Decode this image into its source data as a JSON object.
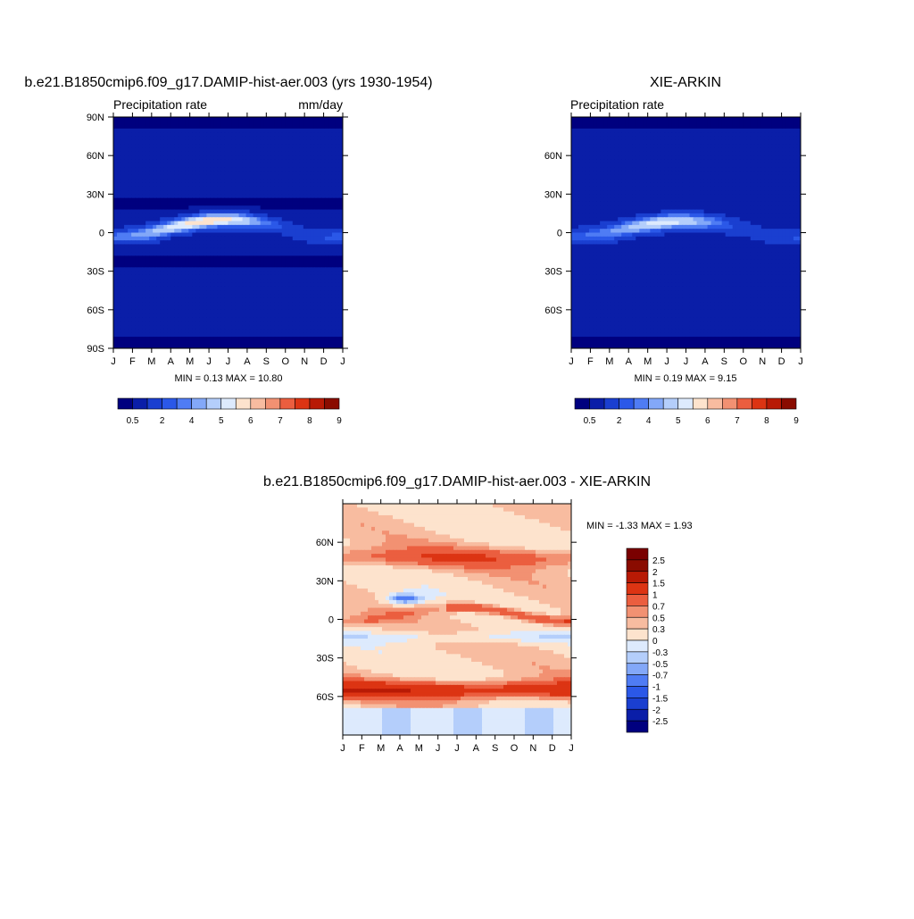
{
  "panels": [
    {
      "title": "b.e21.B1850cmip6.f09_g17.DAMIP-hist-aer.003 (yrs 1930-1954)",
      "subtitle_left": "Precipitation rate",
      "subtitle_right": "mm/day",
      "min_max": "MIN =   0.13 MAX =  10.80",
      "y_ticks": [
        "90N",
        "60N",
        "30N",
        "0",
        "30S",
        "60S",
        "90S"
      ],
      "x_ticks": [
        "J",
        "F",
        "M",
        "A",
        "M",
        "J",
        "J",
        "A",
        "S",
        "O",
        "N",
        "D",
        "J"
      ],
      "colorbar_labels": [
        "0.5",
        "2",
        "4",
        "5",
        "6",
        "7",
        "8",
        "9"
      ]
    },
    {
      "title": "XIE-ARKIN",
      "subtitle_left": "Precipitation rate",
      "subtitle_right": "",
      "min_max": "MIN =   0.19 MAX =   9.15",
      "y_ticks": [
        "60N",
        "30N",
        "0",
        "30S",
        "60S"
      ],
      "x_ticks": [
        "J",
        "F",
        "M",
        "A",
        "M",
        "J",
        "J",
        "A",
        "S",
        "O",
        "N",
        "D",
        "J"
      ],
      "colorbar_labels": [
        "0.5",
        "2",
        "4",
        "5",
        "6",
        "7",
        "8",
        "9"
      ]
    },
    {
      "title": "b.e21.B1850cmip6.f09_g17.DAMIP-hist-aer.003 - XIE-ARKIN",
      "min_max": "MIN =  -1.33 MAX =   1.93",
      "y_ticks": [
        "60N",
        "30N",
        "0",
        "30S",
        "60S"
      ],
      "x_ticks": [
        "J",
        "F",
        "M",
        "A",
        "M",
        "J",
        "J",
        "A",
        "S",
        "O",
        "N",
        "D",
        "J"
      ],
      "colorbar_labels": [
        "2.5",
        "2",
        "1.5",
        "1",
        "0.7",
        "0.5",
        "0.3",
        "0",
        "-0.3",
        "-0.5",
        "-0.7",
        "-1",
        "-1.5",
        "-2",
        "-2.5"
      ]
    }
  ],
  "chart_data": [
    {
      "type": "heatmap",
      "title": "b.e21.B1850cmip6.f09_g17.DAMIP-hist-aer.003 (yrs 1930-1954)",
      "variable": "Precipitation rate",
      "units": "mm/day",
      "x_categories": [
        "J",
        "F",
        "M",
        "A",
        "M",
        "J",
        "J",
        "A",
        "S",
        "O",
        "N",
        "D",
        "J"
      ],
      "ylim": [
        -90,
        90
      ],
      "min": 0.13,
      "max": 10.8,
      "levels": [
        0.5,
        2,
        4,
        5,
        6,
        7,
        8,
        9
      ],
      "colors": [
        "#00007f",
        "#0a1ea8",
        "#1a3fd0",
        "#2b58e8",
        "#4f7cf4",
        "#83a8f8",
        "#b4cefb",
        "#ddeafd",
        "#fde3cd",
        "#f8bca0",
        "#f29172",
        "#eb5e3f",
        "#dc3413",
        "#b81a05",
        "#8a0c00"
      ]
    },
    {
      "type": "heatmap",
      "title": "XIE-ARKIN",
      "variable": "Precipitation rate",
      "x_categories": [
        "J",
        "F",
        "M",
        "A",
        "M",
        "J",
        "J",
        "A",
        "S",
        "O",
        "N",
        "D",
        "J"
      ],
      "ylim": [
        -90,
        90
      ],
      "min": 0.19,
      "max": 9.15,
      "levels": [
        0.5,
        2,
        4,
        5,
        6,
        7,
        8,
        9
      ],
      "colors": [
        "#00007f",
        "#0a1ea8",
        "#1a3fd0",
        "#2b58e8",
        "#4f7cf4",
        "#83a8f8",
        "#b4cefb",
        "#ddeafd",
        "#fde3cd",
        "#f8bca0",
        "#f29172",
        "#eb5e3f",
        "#dc3413",
        "#b81a05",
        "#8a0c00"
      ]
    },
    {
      "type": "heatmap",
      "title": "b.e21.B1850cmip6.f09_g17.DAMIP-hist-aer.003 - XIE-ARKIN",
      "x_categories": [
        "J",
        "F",
        "M",
        "A",
        "M",
        "J",
        "J",
        "A",
        "S",
        "O",
        "N",
        "D",
        "J"
      ],
      "ylim": [
        -90,
        90
      ],
      "min": -1.33,
      "max": 1.93,
      "levels": [
        -2.5,
        -2,
        -1.5,
        -1,
        -0.7,
        -0.5,
        -0.3,
        0,
        0.3,
        0.5,
        0.7,
        1,
        1.5,
        2,
        2.5
      ],
      "colors": [
        "#00007f",
        "#0a1ea8",
        "#1a3fd0",
        "#2b58e8",
        "#4f7cf4",
        "#83a8f8",
        "#b4cefb",
        "#ddeafd",
        "#fde3cd",
        "#f8bca0",
        "#f29172",
        "#eb5e3f",
        "#dc3413",
        "#b81a05",
        "#8a0c00",
        "#7a0000"
      ]
    }
  ]
}
